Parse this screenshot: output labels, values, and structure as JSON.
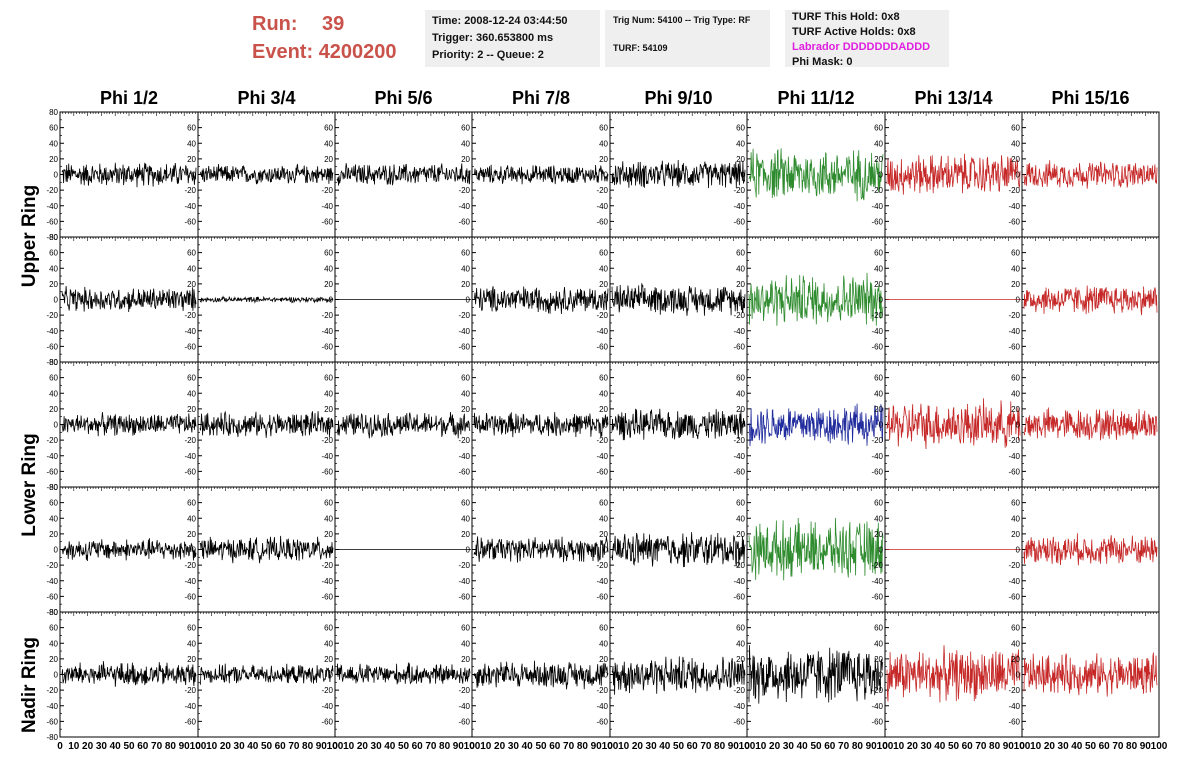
{
  "header": {
    "run_label": "Run:",
    "run_value": "39",
    "event_label": "Event:",
    "event_value": "4200200"
  },
  "info_box_1": {
    "time": "Time: 2008-12-24 03:44:50",
    "trigger": "Trigger: 360.653800 ms",
    "priority": "Priority: 2 -- Queue: 2"
  },
  "info_box_2": {
    "trig": "Trig Num: 54100 -- Trig Type: RF",
    "turf": "TURF: 54109"
  },
  "info_box_3": {
    "turf_hold": "TURF This Hold: 0x8",
    "turf_active": "TURF Active Holds: 0x8",
    "labrador": "Labrador DDDDDDDADDD",
    "phi_mask": "Phi Mask: 0"
  },
  "columns": [
    "Phi 1/2",
    "Phi 3/4",
    "Phi 5/6",
    "Phi 7/8",
    "Phi 9/10",
    "Phi 11/12",
    "Phi 13/14",
    "Phi 15/16"
  ],
  "rings": [
    "Upper Ring",
    "Lower Ring",
    "Nadir Ring"
  ],
  "y_ticks": [
    "80",
    "60",
    "40",
    "20",
    "0",
    "-20",
    "-40",
    "-60",
    "-80"
  ],
  "y_ticks_right": [
    "60",
    "40",
    "20",
    "0",
    "-20",
    "-40",
    "-60"
  ],
  "x_ticks": [
    "0",
    "10",
    "20",
    "30",
    "40",
    "50",
    "60",
    "70",
    "80",
    "90",
    "100"
  ],
  "colors": {
    "black": "#000000",
    "green": "#2e8b2e",
    "red": "#c62828",
    "blue": "#1f2a9c",
    "magenta": "#e01fe0",
    "run_text": "#c9534b"
  },
  "chart_data": {
    "type": "line",
    "xlim": [
      0,
      100
    ],
    "ylim": [
      -80,
      80
    ],
    "rows": 5,
    "cols": 8,
    "cells": [
      [
        {
          "color": "black",
          "amp": 18,
          "flat": false
        },
        {
          "color": "black",
          "amp": 14,
          "flat": false
        },
        {
          "color": "black",
          "amp": 16,
          "flat": false
        },
        {
          "color": "black",
          "amp": 14,
          "flat": false
        },
        {
          "color": "black",
          "amp": 20,
          "flat": false
        },
        {
          "color": "green",
          "amp": 38,
          "flat": false
        },
        {
          "color": "red",
          "amp": 30,
          "flat": false
        },
        {
          "color": "red",
          "amp": 20,
          "flat": false
        }
      ],
      [
        {
          "color": "black",
          "amp": 18,
          "flat": false
        },
        {
          "color": "black",
          "amp": 4,
          "flat": false
        },
        {
          "color": "black",
          "amp": 0,
          "flat": true
        },
        {
          "color": "black",
          "amp": 20,
          "flat": false
        },
        {
          "color": "black",
          "amp": 22,
          "flat": false
        },
        {
          "color": "green",
          "amp": 38,
          "flat": false
        },
        {
          "color": "red",
          "amp": 0,
          "flat": true
        },
        {
          "color": "red",
          "amp": 22,
          "flat": false
        }
      ],
      [
        {
          "color": "black",
          "amp": 16,
          "flat": false
        },
        {
          "color": "black",
          "amp": 18,
          "flat": false
        },
        {
          "color": "black",
          "amp": 18,
          "flat": false
        },
        {
          "color": "black",
          "amp": 18,
          "flat": false
        },
        {
          "color": "black",
          "amp": 22,
          "flat": false
        },
        {
          "color": "blue",
          "amp": 30,
          "flat": false
        },
        {
          "color": "red",
          "amp": 34,
          "flat": false
        },
        {
          "color": "red",
          "amp": 24,
          "flat": false
        }
      ],
      [
        {
          "color": "black",
          "amp": 16,
          "flat": false
        },
        {
          "color": "black",
          "amp": 18,
          "flat": false
        },
        {
          "color": "black",
          "amp": 0,
          "flat": true
        },
        {
          "color": "black",
          "amp": 18,
          "flat": false
        },
        {
          "color": "black",
          "amp": 26,
          "flat": false
        },
        {
          "color": "green",
          "amp": 42,
          "flat": false
        },
        {
          "color": "red",
          "amp": 0,
          "flat": true
        },
        {
          "color": "red",
          "amp": 22,
          "flat": false
        }
      ],
      [
        {
          "color": "black",
          "amp": 18,
          "flat": false
        },
        {
          "color": "black",
          "amp": 14,
          "flat": false
        },
        {
          "color": "black",
          "amp": 16,
          "flat": false
        },
        {
          "color": "black",
          "amp": 20,
          "flat": false
        },
        {
          "color": "black",
          "amp": 28,
          "flat": false
        },
        {
          "color": "black",
          "amp": 42,
          "flat": false
        },
        {
          "color": "red",
          "amp": 38,
          "flat": false
        },
        {
          "color": "red",
          "amp": 30,
          "flat": false
        }
      ]
    ]
  }
}
